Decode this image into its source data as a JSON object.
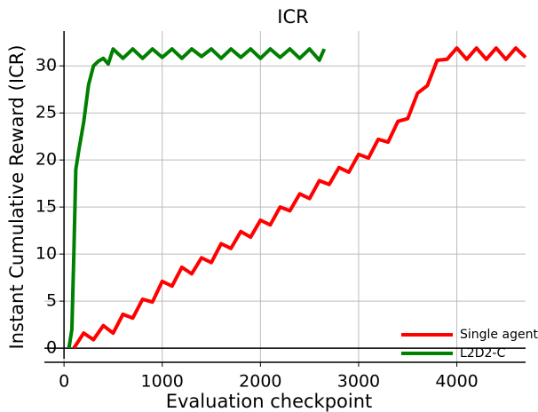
{
  "chart_data": {
    "type": "line",
    "title": "ICR",
    "xlabel": "Evaluation checkpoint",
    "ylabel": "Instant Cumulative Reward (ICR)",
    "xlim": [
      -200,
      4700
    ],
    "ylim": [
      -1.5,
      33.7
    ],
    "xticks": [
      0,
      1000,
      2000,
      3000,
      4000
    ],
    "yticks": [
      0,
      5,
      10,
      15,
      20,
      25,
      30
    ],
    "grid": true,
    "legend": "lower right",
    "series": [
      {
        "name": "Single agent",
        "color": "#ff0000",
        "x": [
          100,
          200,
          300,
          400,
          500,
          600,
          700,
          800,
          900,
          1000,
          1100,
          1200,
          1300,
          1400,
          1500,
          1600,
          1700,
          1800,
          1900,
          2000,
          2100,
          2200,
          2300,
          2400,
          2500,
          2600,
          2700,
          2800,
          2900,
          3000,
          3100,
          3200,
          3300,
          3400,
          3500,
          3600,
          3700,
          3800,
          3900,
          4000,
          4100,
          4200,
          4300,
          4400,
          4500,
          4600,
          4700
        ],
        "values": [
          0,
          1.6,
          0.9,
          2.4,
          1.6,
          3.6,
          3.2,
          5.2,
          4.9,
          7.1,
          6.6,
          8.6,
          7.9,
          9.6,
          9.1,
          11.1,
          10.6,
          12.4,
          11.8,
          13.6,
          13.1,
          15.0,
          14.6,
          16.4,
          15.9,
          17.8,
          17.4,
          19.2,
          18.7,
          20.6,
          20.2,
          22.2,
          21.9,
          24.1,
          24.4,
          27.1,
          27.9,
          30.6,
          30.7,
          31.9,
          30.7,
          31.9,
          30.7,
          31.9,
          30.7,
          31.9,
          30.9
        ]
      },
      {
        "name": "L2D2-C",
        "color": "#008000",
        "x": [
          50,
          80,
          100,
          120,
          150,
          200,
          250,
          300,
          350,
          400,
          450,
          500,
          600,
          700,
          800,
          900,
          1000,
          1100,
          1200,
          1300,
          1400,
          1500,
          1600,
          1700,
          1800,
          1900,
          2000,
          2100,
          2200,
          2300,
          2400,
          2500,
          2600,
          2650
        ],
        "values": [
          0,
          2,
          10,
          19,
          21,
          24,
          28,
          30,
          30.5,
          30.8,
          30.2,
          31.8,
          30.8,
          31.8,
          30.8,
          31.8,
          30.9,
          31.8,
          30.8,
          31.8,
          31,
          31.8,
          30.8,
          31.8,
          30.9,
          31.8,
          30.8,
          31.8,
          30.9,
          31.8,
          30.8,
          31.8,
          30.6,
          31.8
        ]
      }
    ]
  }
}
